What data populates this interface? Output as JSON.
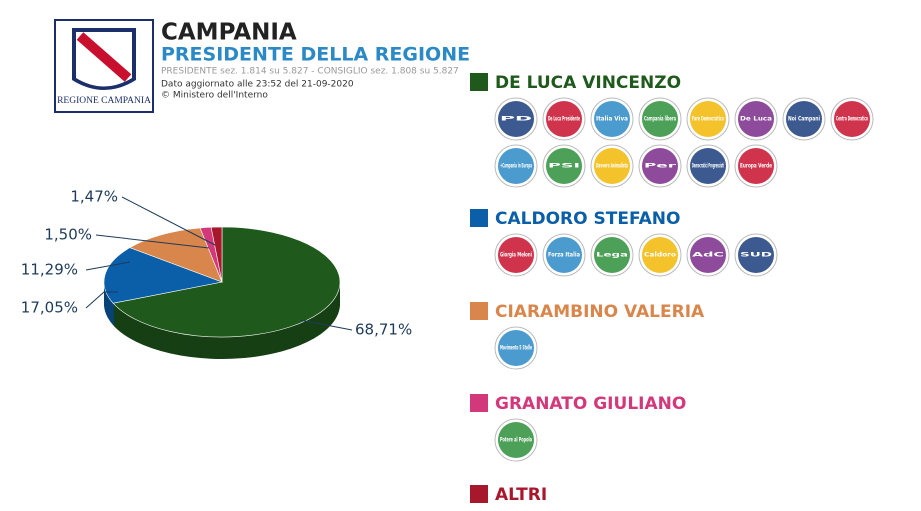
{
  "header": {
    "logo_text": "REGIONE CAMPANIA",
    "title": "CAMPANIA",
    "subtitle": "PRESIDENTE DELLA REGIONE",
    "sections": "PRESIDENTE sez. 1.814 su 5.827 - CONSIGLIO sez. 1.808 su 5.827",
    "updated": "Dato aggiornato alle 23:52 del 21-09-2020",
    "source": "© Ministero dell'Interno"
  },
  "chart_data": {
    "type": "pie",
    "categories": [
      "DE LUCA VINCENZO",
      "CALDORO STEFANO",
      "CIARAMBINO VALERIA",
      "GRANATO GIULIANO",
      "ALTRI"
    ],
    "values": [
      68.71,
      17.05,
      11.29,
      1.5,
      1.47
    ],
    "value_labels": [
      "68,71%",
      "17,05%",
      "11,29%",
      "1,50%",
      "1,47%"
    ],
    "colors": [
      "#1f5a1c",
      "#0b5ea8",
      "#d9864c",
      "#d3397a",
      "#a8182c"
    ]
  },
  "lists": [
    [
      "PD",
      "De Luca Presidente",
      "Italia Viva",
      "Campania libera",
      "Fare Democratico",
      "De Luca",
      "Noi Campani",
      "Centro Democratico",
      "+Campania in Europa",
      "PSI",
      "Davvero Animalista",
      "Per",
      "Democratici Progressisti",
      "Europa Verde"
    ],
    [
      "Giorgia Meloni",
      "Forza Italia",
      "Lega",
      "Caldoro",
      "AdC",
      "SUD"
    ],
    [
      "Movimento 5 Stelle"
    ],
    [
      "Potere al Popolo"
    ],
    []
  ]
}
